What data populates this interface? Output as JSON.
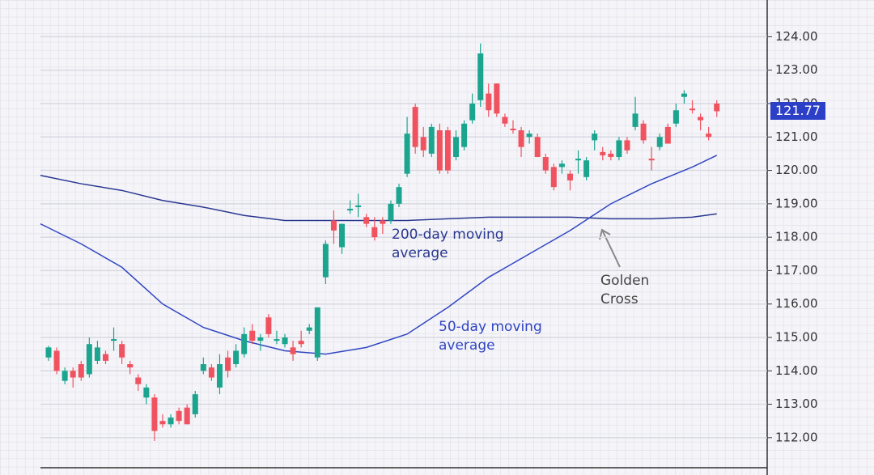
{
  "chart_data": {
    "type": "candlestick",
    "ylim": [
      111.1,
      125.1
    ],
    "yticks": [
      {
        "value": 112,
        "label": "112.00"
      },
      {
        "value": 113,
        "label": "113.00"
      },
      {
        "value": 114,
        "label": "114.00"
      },
      {
        "value": 115,
        "label": "115.00"
      },
      {
        "value": 116,
        "label": "116.00"
      },
      {
        "value": 117,
        "label": "117.00"
      },
      {
        "value": 118,
        "label": "118.00"
      },
      {
        "value": 119,
        "label": "119.00"
      },
      {
        "value": 120,
        "label": "120.00"
      },
      {
        "value": 121,
        "label": "121.00"
      },
      {
        "value": 122,
        "label": "122.00"
      },
      {
        "value": 123,
        "label": "123.00"
      },
      {
        "value": 124,
        "label": "124.00"
      }
    ],
    "grid": true,
    "up_color": "#1ba58f",
    "down_color": "#f0525f",
    "open": [
      114.4,
      114.6,
      113.7,
      114.0,
      114.2,
      113.9,
      114.3,
      114.5,
      114.9,
      114.8,
      114.2,
      113.8,
      113.2,
      113.2,
      112.5,
      112.4,
      112.8,
      112.9,
      112.7,
      114.0,
      114.1,
      113.5,
      114.4,
      114.2,
      114.5,
      115.2,
      114.9,
      115.6,
      114.9,
      114.8,
      114.7,
      114.9,
      115.2,
      114.4,
      116.8,
      118.5,
      117.7,
      118.8,
      118.9,
      118.6,
      118.3,
      118.5,
      118.5,
      119.0,
      119.9,
      121.9,
      121.0,
      120.5,
      121.2,
      121.2,
      120.4,
      120.7,
      121.5,
      122.1,
      122.3,
      122.6,
      121.6,
      121.25,
      121.2,
      121.0,
      121.0,
      120.4,
      120.1,
      120.1,
      119.9,
      120.3,
      119.8,
      120.9,
      120.55,
      120.5,
      120.4,
      120.9,
      121.3,
      121.4,
      120.35,
      120.7,
      121.3,
      121.4,
      122.2,
      121.85,
      121.6,
      121.1,
      122.0
    ],
    "high": [
      114.75,
      114.7,
      114.1,
      114.1,
      114.3,
      115.0,
      114.9,
      114.6,
      115.3,
      114.9,
      114.3,
      113.9,
      113.6,
      113.3,
      112.7,
      112.7,
      112.9,
      113.0,
      113.4,
      114.4,
      114.2,
      114.5,
      114.6,
      114.8,
      115.3,
      115.4,
      115.1,
      115.7,
      115.2,
      115.1,
      114.9,
      115.2,
      115.4,
      115.9,
      117.9,
      118.8,
      118.4,
      119.1,
      119.3,
      118.7,
      118.6,
      118.6,
      119.1,
      119.6,
      121.6,
      122.0,
      121.3,
      121.4,
      121.4,
      121.3,
      121.2,
      121.5,
      122.3,
      123.8,
      122.6,
      122.6,
      121.7,
      121.5,
      121.3,
      121.2,
      121.1,
      120.5,
      120.2,
      120.3,
      120.0,
      120.6,
      120.4,
      121.2,
      120.7,
      120.6,
      121.0,
      121.0,
      122.2,
      121.5,
      120.7,
      121.1,
      121.4,
      122.0,
      122.4,
      122.1,
      121.7,
      121.3,
      122.1
    ],
    "low": [
      114.3,
      113.9,
      113.6,
      113.5,
      113.7,
      113.8,
      114.2,
      114.2,
      114.6,
      114.2,
      113.9,
      113.4,
      113.0,
      111.9,
      112.3,
      112.3,
      112.4,
      112.4,
      112.6,
      113.9,
      113.7,
      113.3,
      113.8,
      114.1,
      114.4,
      114.8,
      114.6,
      115.0,
      114.8,
      114.7,
      114.3,
      114.7,
      115.1,
      114.3,
      116.6,
      117.8,
      117.5,
      118.7,
      118.6,
      118.3,
      117.9,
      118.1,
      118.4,
      118.9,
      119.8,
      120.5,
      120.4,
      120.4,
      119.9,
      119.9,
      120.3,
      120.6,
      121.4,
      121.9,
      121.6,
      121.6,
      121.3,
      121.1,
      120.4,
      120.8,
      120.4,
      119.9,
      119.4,
      119.9,
      119.4,
      119.9,
      119.7,
      120.6,
      120.3,
      120.3,
      120.3,
      120.5,
      121.2,
      120.8,
      120.0,
      120.6,
      120.8,
      121.3,
      122.0,
      121.7,
      121.2,
      120.9,
      121.6
    ],
    "close": [
      114.7,
      114.0,
      114.0,
      113.8,
      113.8,
      114.8,
      114.7,
      114.3,
      114.95,
      114.4,
      114.1,
      113.6,
      113.5,
      112.2,
      112.4,
      112.6,
      112.5,
      112.4,
      113.3,
      114.2,
      113.8,
      114.2,
      114.0,
      114.6,
      115.1,
      114.9,
      115.0,
      115.1,
      114.95,
      115.0,
      114.5,
      114.8,
      115.3,
      115.9,
      117.8,
      118.2,
      118.4,
      118.85,
      118.95,
      118.4,
      118.0,
      118.4,
      119.0,
      119.5,
      121.1,
      120.7,
      120.6,
      121.3,
      120.0,
      120.0,
      121.0,
      121.4,
      122.0,
      123.5,
      121.8,
      121.7,
      121.4,
      121.2,
      120.7,
      121.1,
      120.4,
      120.0,
      119.5,
      120.2,
      119.7,
      120.35,
      120.3,
      121.1,
      120.45,
      120.4,
      120.9,
      120.6,
      121.7,
      120.9,
      120.3,
      121.0,
      120.8,
      121.8,
      122.3,
      121.8,
      121.5,
      121.0,
      121.77
    ],
    "lines": [
      {
        "name": "200-day moving average",
        "color": "#2a3790",
        "x": [
          -1,
          4,
          9,
          14,
          19,
          24,
          29,
          34,
          39,
          44,
          49,
          54,
          59,
          64,
          69,
          74,
          79,
          82
        ],
        "values": [
          119.85,
          119.6,
          119.4,
          119.1,
          118.9,
          118.65,
          118.5,
          118.5,
          118.5,
          118.5,
          118.55,
          118.6,
          118.6,
          118.6,
          118.55,
          118.55,
          118.6,
          118.7
        ]
      },
      {
        "name": "50-day moving average",
        "color": "#3146c2",
        "x": [
          -1,
          4,
          9,
          14,
          19,
          24,
          29,
          34,
          39,
          44,
          49,
          54,
          59,
          64,
          69,
          74,
          79,
          82
        ],
        "values": [
          118.4,
          117.8,
          117.1,
          116.0,
          115.3,
          114.9,
          114.6,
          114.5,
          114.7,
          115.1,
          115.9,
          116.8,
          117.5,
          118.2,
          119.0,
          119.6,
          120.1,
          120.45
        ]
      }
    ],
    "last_price": 121.77,
    "annotation": "Golden Cross"
  }
}
